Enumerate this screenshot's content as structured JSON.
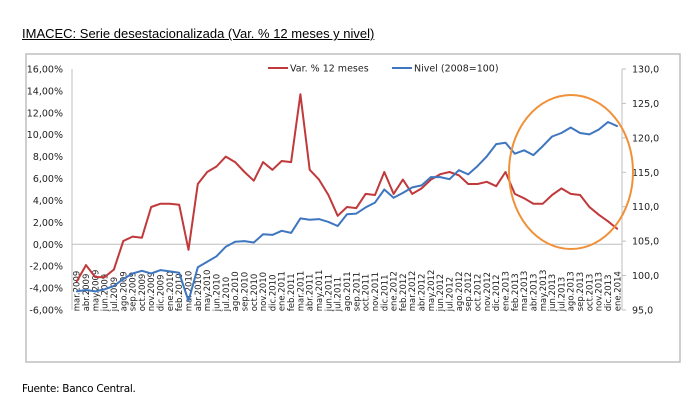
{
  "title": "IMACEC: Serie desestacionalizada (Var. % 12 meses y nivel)",
  "source": "Fuente: Banco Central.",
  "chart_data": {
    "type": "line",
    "title": "IMACEC: Serie desestacionalizada (Var. % 12 meses y nivel)",
    "xlabel": "",
    "ylabel": "",
    "legend_position": "top-center",
    "grid": false,
    "annotation": "orange circle highlighting feb.2013-ene.2014",
    "y_left": {
      "ylim": [
        -6,
        16
      ],
      "ticks": [
        "-6,00%",
        "-4,00%",
        "-2,00%",
        "0,00%",
        "2,00%",
        "4,00%",
        "6,00%",
        "8,00%",
        "10,00%",
        "12,00%",
        "14,00%",
        "16,00%"
      ],
      "tick_values": [
        -6,
        -4,
        -2,
        0,
        2,
        4,
        6,
        8,
        10,
        12,
        14,
        16
      ]
    },
    "y_right": {
      "ylim": [
        95,
        130
      ],
      "ticks": [
        "95,0",
        "100,0",
        "105,0",
        "110,0",
        "115,0",
        "120,0",
        "125,0",
        "130,0"
      ],
      "tick_values": [
        95,
        100,
        105,
        110,
        115,
        120,
        125,
        130
      ]
    },
    "categories": [
      "mar.2009",
      "abr.2009",
      "may.2009",
      "jun.2009",
      "jul.2009",
      "ago.2009",
      "sep.2009",
      "oct.2009",
      "nov.2009",
      "dic.2009",
      "ene.2010",
      "feb.2010",
      "mar.2010",
      "abr.2010",
      "may.2010",
      "jun.2010",
      "jul.2010",
      "ago.2010",
      "sep.2010",
      "oct.2010",
      "nov.2010",
      "dic.2010",
      "ene.2011",
      "feb.2011",
      "mar.2011",
      "abr.2011",
      "may.2011",
      "jun.2011",
      "jul.2011",
      "ago.2011",
      "sep.2011",
      "oct.2011",
      "nov.2011",
      "dic.2011",
      "ene.2012",
      "feb.2012",
      "mar.2012",
      "abr.2012",
      "may.2012",
      "jun.2012",
      "jul.2012",
      "ago.2012",
      "sep.2012",
      "oct.2012",
      "nov.2012",
      "dic.2012",
      "ene.2013",
      "feb.2013",
      "mar.2013",
      "abr.2013",
      "may.2013",
      "jun.2013",
      "jul.2013",
      "ago.2013",
      "sep.2013",
      "oct.2013",
      "nov.2013",
      "dic.2013",
      "ene.2014"
    ],
    "series": [
      {
        "name": "Var. % 12 meses",
        "axis": "left",
        "color": "#c0393b",
        "values": [
          -3.4,
          -1.9,
          -3.0,
          -3.0,
          -2.3,
          0.3,
          0.7,
          0.6,
          3.4,
          3.7,
          3.7,
          3.6,
          -0.5,
          5.5,
          6.6,
          7.1,
          8.0,
          7.5,
          6.6,
          5.8,
          7.5,
          6.8,
          7.6,
          7.5,
          13.7,
          6.8,
          5.9,
          4.5,
          2.6,
          3.4,
          3.3,
          4.6,
          4.5,
          6.6,
          4.6,
          5.9,
          4.6,
          5.1,
          5.9,
          6.4,
          6.6,
          6.3,
          5.5,
          5.5,
          5.7,
          5.3,
          6.6,
          4.6,
          4.2,
          3.7,
          3.7,
          4.5,
          5.1,
          4.6,
          4.5,
          3.4,
          2.7,
          2.1,
          1.4
        ]
      },
      {
        "name": "Nivel (2008=100)",
        "axis": "right",
        "color": "#3f76c0",
        "values": [
          97.7,
          97.9,
          97.7,
          98.0,
          98.5,
          99.5,
          100.3,
          100.7,
          100.3,
          100.8,
          100.6,
          100.4,
          96.3,
          101.2,
          102.0,
          102.8,
          104.2,
          104.9,
          105.0,
          104.8,
          106.0,
          105.9,
          106.5,
          106.2,
          108.3,
          108.1,
          108.2,
          107.8,
          107.2,
          108.9,
          109.0,
          109.9,
          110.6,
          112.5,
          111.3,
          112.0,
          112.8,
          113.1,
          114.3,
          114.3,
          114.0,
          115.3,
          114.7,
          115.9,
          117.3,
          119.1,
          119.3,
          117.7,
          118.2,
          117.5,
          118.8,
          120.2,
          120.7,
          121.5,
          120.7,
          120.5,
          121.2,
          122.3,
          121.7
        ]
      }
    ],
    "annotation_color": "#f0913a"
  }
}
